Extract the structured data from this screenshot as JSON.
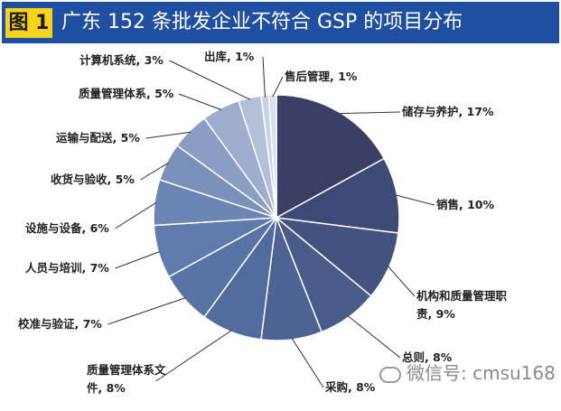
{
  "header": {
    "badge": "图 1",
    "title": "广东 152 条批发企业不符合 GSP 的项目分布",
    "colors": {
      "band": "#1f4fa0",
      "badge": "#f5d31a"
    }
  },
  "watermark": {
    "icon": "wechat-icon",
    "text": "微信号: cmsu168"
  },
  "chart_data": {
    "type": "pie",
    "title": "广东 152 条批发企业不符合 GSP 的项目分布",
    "start": "12 o'clock, clockwise",
    "legend": "none (data labels with leader lines)",
    "slices": [
      {
        "name": "储存与养护",
        "value": 17,
        "label": [
          "储存与养护, 17%"
        ],
        "color": "#3b3f66"
      },
      {
        "name": "销售",
        "value": 10,
        "label": [
          "销售, 10%"
        ],
        "color": "#3e4a76"
      },
      {
        "name": "机构和质量管理职责",
        "value": 9,
        "label": [
          "机构和质量管理职",
          "责, 9%"
        ],
        "color": "#43527f"
      },
      {
        "name": "总则",
        "value": 8,
        "label": [
          "总则, 8%"
        ],
        "color": "#485b89"
      },
      {
        "name": "采购",
        "value": 8,
        "label": [
          "采购, 8%"
        ],
        "color": "#4d6394"
      },
      {
        "name": "质量管理体系文件",
        "value": 8,
        "label": [
          "质量管理体系文",
          "件, 8%"
        ],
        "color": "#526b9e"
      },
      {
        "name": "校准与验证",
        "value": 7,
        "label": [
          "校准与验证, 7%"
        ],
        "color": "#5873a6"
      },
      {
        "name": "人员与培训",
        "value": 7,
        "label": [
          "人员与培训, 7%"
        ],
        "color": "#5f7bac"
      },
      {
        "name": "设施与设备",
        "value": 6,
        "label": [
          "设施与设备, 6%"
        ],
        "color": "#6b86b3"
      },
      {
        "name": "收货与验收",
        "value": 5,
        "label": [
          "收货与验收, 5%"
        ],
        "color": "#7a91ba"
      },
      {
        "name": "运输与配送",
        "value": 5,
        "label": [
          "运输与配送, 5%"
        ],
        "color": "#8a9dc3"
      },
      {
        "name": "质量管理体系",
        "value": 5,
        "label": [
          "质量管理体系, 5%"
        ],
        "color": "#9eaccd"
      },
      {
        "name": "计算机系统",
        "value": 3,
        "label": [
          "计算机系统, 3%"
        ],
        "color": "#b4bfd9"
      },
      {
        "name": "出库",
        "value": 1,
        "label": [
          "出库, 1%"
        ],
        "color": "#c9d1e4"
      },
      {
        "name": "售后管理",
        "value": 1,
        "label": [
          "售后管理, 1%"
        ],
        "color": "#dbe0ee"
      }
    ]
  }
}
